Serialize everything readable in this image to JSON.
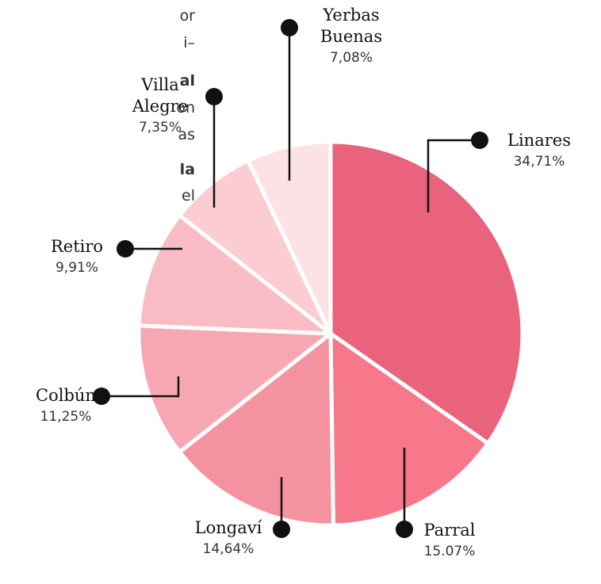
{
  "side_text": [
    {
      "text": "or",
      "bold": false
    },
    {
      "text": "i–",
      "bold": false
    },
    {
      "text": "al",
      "bold": true
    },
    {
      "text": "on",
      "bold": false
    },
    {
      "text": "as",
      "bold": false
    },
    {
      "text": "la",
      "bold": true
    },
    {
      "text": "el",
      "bold": false
    }
  ],
  "chart_data": {
    "type": "pie",
    "categories": [
      "Linares",
      "Parral",
      "Longaví",
      "Colbún",
      "Retiro",
      "Villa Alegre",
      "Yerbas Buenas"
    ],
    "values": [
      34.71,
      15.07,
      14.64,
      11.25,
      9.91,
      7.35,
      7.08
    ],
    "value_labels": [
      "34,71%",
      "15.07%",
      "14,64%",
      "11,25%",
      "9,91%",
      "7,35%",
      "7,08%"
    ],
    "colors": [
      "#e8637b",
      "#f7778b",
      "#f5929f",
      "#f7a7b2",
      "#f9bcc5",
      "#fbcdd3",
      "#fde2e5"
    ]
  }
}
